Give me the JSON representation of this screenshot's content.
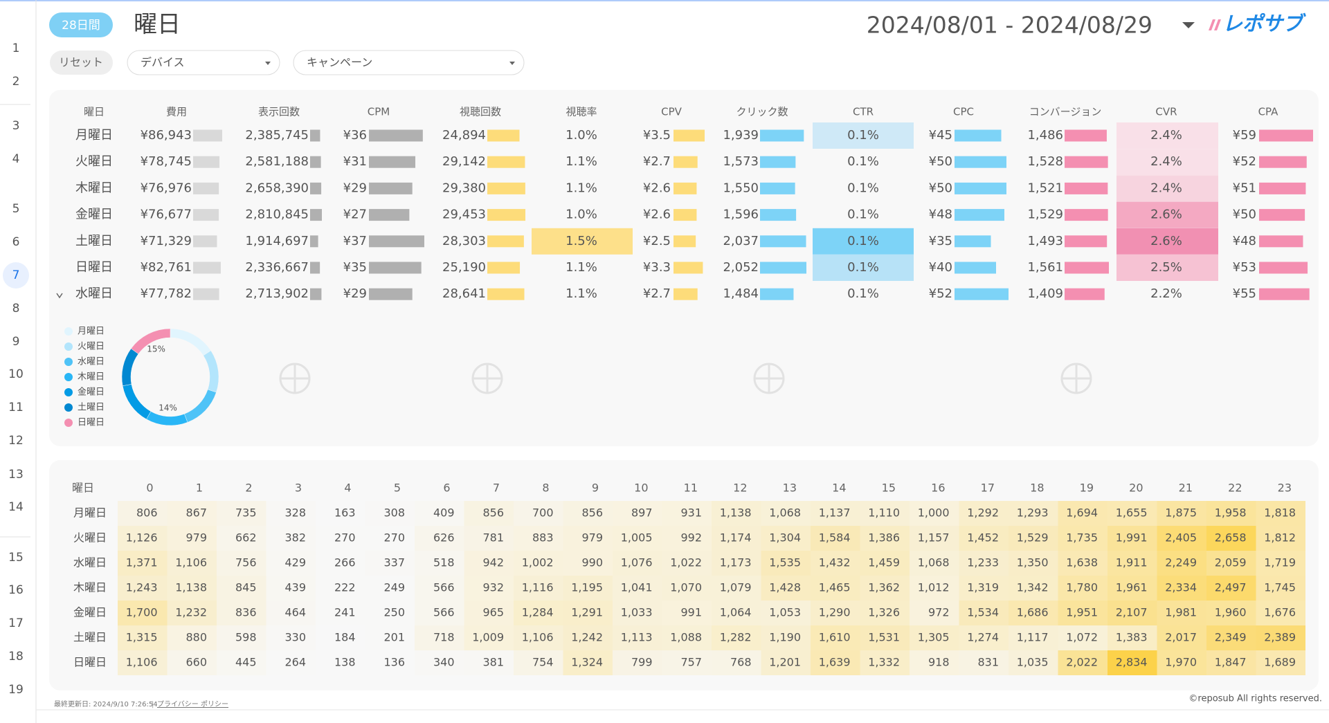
{
  "gutter": {
    "rows": [
      1,
      2,
      3,
      4,
      5,
      6,
      7,
      8,
      9,
      10,
      11,
      12,
      13,
      14,
      15,
      16,
      17,
      18,
      19
    ]
  },
  "header": {
    "badge": "28日間",
    "title": "曜日",
    "date_range": "2024/08/01 - 2024/08/29",
    "logo": "レポサブ"
  },
  "filters": {
    "reset": "リセット",
    "dropdowns": [
      "デバイス",
      "キャンペーン"
    ]
  },
  "summary_table": {
    "columns": [
      "曜日",
      "費用",
      "表示回数",
      "CPM",
      "視聴回数",
      "視聴率",
      "CPV",
      "クリック数",
      "CTR",
      "CPC",
      "コンバージョン",
      "CVR",
      "CPA"
    ],
    "rows": [
      [
        "月曜日",
        "¥86,943",
        "2,385,745",
        "¥36",
        "24,894",
        "1.0%",
        "¥3.5",
        "1,939",
        "0.1%",
        "¥45",
        "1,486",
        "2.4%",
        "¥59"
      ],
      [
        "火曜日",
        "¥78,745",
        "2,581,188",
        "¥31",
        "29,142",
        "1.1%",
        "¥2.7",
        "1,573",
        "0.1%",
        "¥50",
        "1,528",
        "2.4%",
        "¥52"
      ],
      [
        "木曜日",
        "¥76,976",
        "2,658,390",
        "¥29",
        "29,380",
        "1.1%",
        "¥2.6",
        "1,550",
        "0.1%",
        "¥50",
        "1,521",
        "2.4%",
        "¥51"
      ],
      [
        "金曜日",
        "¥76,677",
        "2,810,845",
        "¥27",
        "29,453",
        "1.0%",
        "¥2.6",
        "1,596",
        "0.1%",
        "¥48",
        "1,529",
        "2.6%",
        "¥50"
      ],
      [
        "土曜日",
        "¥71,329",
        "1,914,697",
        "¥37",
        "28,303",
        "1.5%",
        "¥2.5",
        "2,037",
        "0.1%",
        "¥35",
        "1,493",
        "2.6%",
        "¥48"
      ],
      [
        "日曜日",
        "¥82,761",
        "2,336,667",
        "¥35",
        "25,190",
        "1.1%",
        "¥3.3",
        "2,052",
        "0.1%",
        "¥40",
        "1,561",
        "2.5%",
        "¥53"
      ],
      [
        "水曜日",
        "¥77,782",
        "2,713,902",
        "¥29",
        "28,641",
        "1.1%",
        "¥2.7",
        "1,484",
        "0.1%",
        "¥52",
        "1,409",
        "2.2%",
        "¥55"
      ]
    ],
    "bar_colors": [
      null,
      "#d9d9d9",
      "#b0b0b0",
      "#b0b0b0",
      "#fddc7a",
      null,
      "#fddc7a",
      "#7dd3f7",
      null,
      "#7dd3f7",
      "#f48fb1",
      null,
      "#f48fb1"
    ],
    "cell_fills": {
      "5": [
        null,
        null,
        null,
        null,
        "#fde08a",
        null,
        null
      ],
      "8": [
        "#cfe9f7",
        null,
        null,
        null,
        "#7dd3f7",
        "#b7e2f7",
        null
      ],
      "11": [
        "#f9e0e8",
        "#f9e0e8",
        "#f7d4df",
        "#f4a9c2",
        "#f190b2",
        "#f6c2d3",
        null
      ]
    }
  },
  "chart_data": {
    "type": "donut",
    "categories": [
      "月曜日",
      "火曜日",
      "水曜日",
      "木曜日",
      "金曜日",
      "土曜日",
      "日曜日"
    ],
    "values": [
      15.8,
      14.3,
      14.1,
      14.0,
      13.9,
      12.9,
      15.0
    ],
    "value_labels": [
      null,
      null,
      null,
      "14%",
      null,
      null,
      "15%"
    ],
    "colors": [
      "#e1f5fe",
      "#b3e5fc",
      "#4fc3f7",
      "#29b6f6",
      "#039be5",
      "#0288d1",
      "#f48fb1"
    ]
  },
  "heatmap_table": {
    "label_header": "曜日",
    "hours": [
      0,
      1,
      2,
      3,
      4,
      5,
      6,
      7,
      8,
      9,
      10,
      11,
      12,
      13,
      14,
      15,
      16,
      17,
      18,
      19,
      20,
      21,
      22,
      23
    ],
    "rows": [
      {
        "label": "月曜日",
        "values": [
          "806",
          "867",
          "735",
          "328",
          "163",
          "308",
          "409",
          "856",
          "700",
          "856",
          "897",
          "931",
          "1,138",
          "1,068",
          "1,137",
          "1,110",
          "1,000",
          "1,292",
          "1,293",
          "1,694",
          "1,655",
          "1,875",
          "1,958",
          "1,818"
        ]
      },
      {
        "label": "火曜日",
        "values": [
          "1,126",
          "979",
          "662",
          "382",
          "270",
          "270",
          "626",
          "781",
          "883",
          "979",
          "1,005",
          "992",
          "1,174",
          "1,304",
          "1,584",
          "1,386",
          "1,157",
          "1,452",
          "1,529",
          "1,735",
          "1,991",
          "2,405",
          "2,658",
          "1,812"
        ]
      },
      {
        "label": "水曜日",
        "values": [
          "1,371",
          "1,106",
          "756",
          "429",
          "266",
          "337",
          "518",
          "942",
          "1,002",
          "990",
          "1,076",
          "1,022",
          "1,173",
          "1,535",
          "1,432",
          "1,459",
          "1,068",
          "1,233",
          "1,350",
          "1,638",
          "1,911",
          "2,249",
          "2,059",
          "1,719"
        ]
      },
      {
        "label": "木曜日",
        "values": [
          "1,243",
          "1,138",
          "845",
          "439",
          "222",
          "249",
          "566",
          "932",
          "1,116",
          "1,195",
          "1,041",
          "1,070",
          "1,079",
          "1,428",
          "1,465",
          "1,362",
          "1,012",
          "1,319",
          "1,342",
          "1,780",
          "1,961",
          "2,334",
          "2,497",
          "1,745"
        ]
      },
      {
        "label": "金曜日",
        "values": [
          "1,700",
          "1,232",
          "836",
          "464",
          "241",
          "250",
          "566",
          "965",
          "1,284",
          "1,291",
          "1,033",
          "991",
          "1,064",
          "1,053",
          "1,290",
          "1,326",
          "972",
          "1,534",
          "1,686",
          "1,951",
          "2,107",
          "1,981",
          "1,960",
          "1,676"
        ]
      },
      {
        "label": "土曜日",
        "values": [
          "1,315",
          "880",
          "598",
          "330",
          "184",
          "201",
          "718",
          "1,009",
          "1,106",
          "1,242",
          "1,113",
          "1,088",
          "1,282",
          "1,190",
          "1,610",
          "1,531",
          "1,305",
          "1,274",
          "1,117",
          "1,072",
          "1,383",
          "2,017",
          "2,349",
          "2,389"
        ]
      },
      {
        "label": "日曜日",
        "values": [
          "1,106",
          "660",
          "445",
          "264",
          "138",
          "136",
          "340",
          "381",
          "754",
          "1,324",
          "799",
          "757",
          "768",
          "1,201",
          "1,639",
          "1,332",
          "918",
          "831",
          "1,035",
          "2,022",
          "2,834",
          "1,970",
          "1,847",
          "1,689"
        ]
      }
    ],
    "heat_color": "#fcd24a"
  },
  "footer": {
    "updated": "最終更新日: 2024/9/10 7:26:54",
    "separator": "|",
    "privacy": "プライバシー ポリシー",
    "copyright": "©reposub All rights reserved."
  }
}
